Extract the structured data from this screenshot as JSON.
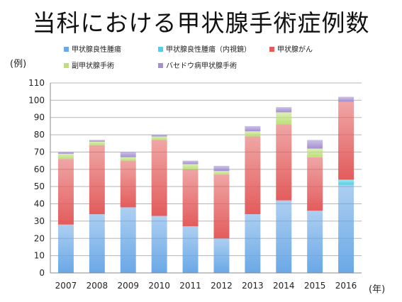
{
  "chart_data": {
    "type": "bar",
    "stacked": true,
    "title": "当科における甲状腺手術症例数",
    "ylabel": "(例)",
    "xlabel": "(年)",
    "ylim": [
      0,
      110
    ],
    "yticks": [
      0,
      10,
      20,
      30,
      40,
      50,
      60,
      70,
      80,
      90,
      100,
      110
    ],
    "grid": true,
    "legend_position": "top",
    "categories": [
      "2007",
      "2008",
      "2009",
      "2010",
      "2011",
      "2012",
      "2013",
      "2014",
      "2015",
      "2016"
    ],
    "series": [
      {
        "name": "甲状腺良性腫瘍",
        "color": "#6aa8e6",
        "values": [
          28,
          34,
          38,
          33,
          27,
          20,
          34,
          42,
          36,
          51
        ]
      },
      {
        "name": "甲状腺良性腫瘍（内視鏡）",
        "color": "#4fd0e8",
        "values": [
          0,
          0,
          0,
          0,
          0,
          0,
          0,
          0,
          0,
          3
        ]
      },
      {
        "name": "甲状腺がん",
        "color": "#e35c5c",
        "values": [
          38,
          40,
          27,
          44,
          33,
          37,
          45,
          44,
          31,
          45
        ]
      },
      {
        "name": "副甲状腺手術",
        "color": "#bde07a",
        "values": [
          3,
          2,
          2,
          2,
          3,
          2,
          3,
          7,
          5,
          0
        ]
      },
      {
        "name": "バセドウ病甲状腺手術",
        "color": "#a48fd2",
        "values": [
          1,
          1,
          3,
          1,
          2,
          3,
          3,
          3,
          5,
          3
        ]
      }
    ]
  }
}
